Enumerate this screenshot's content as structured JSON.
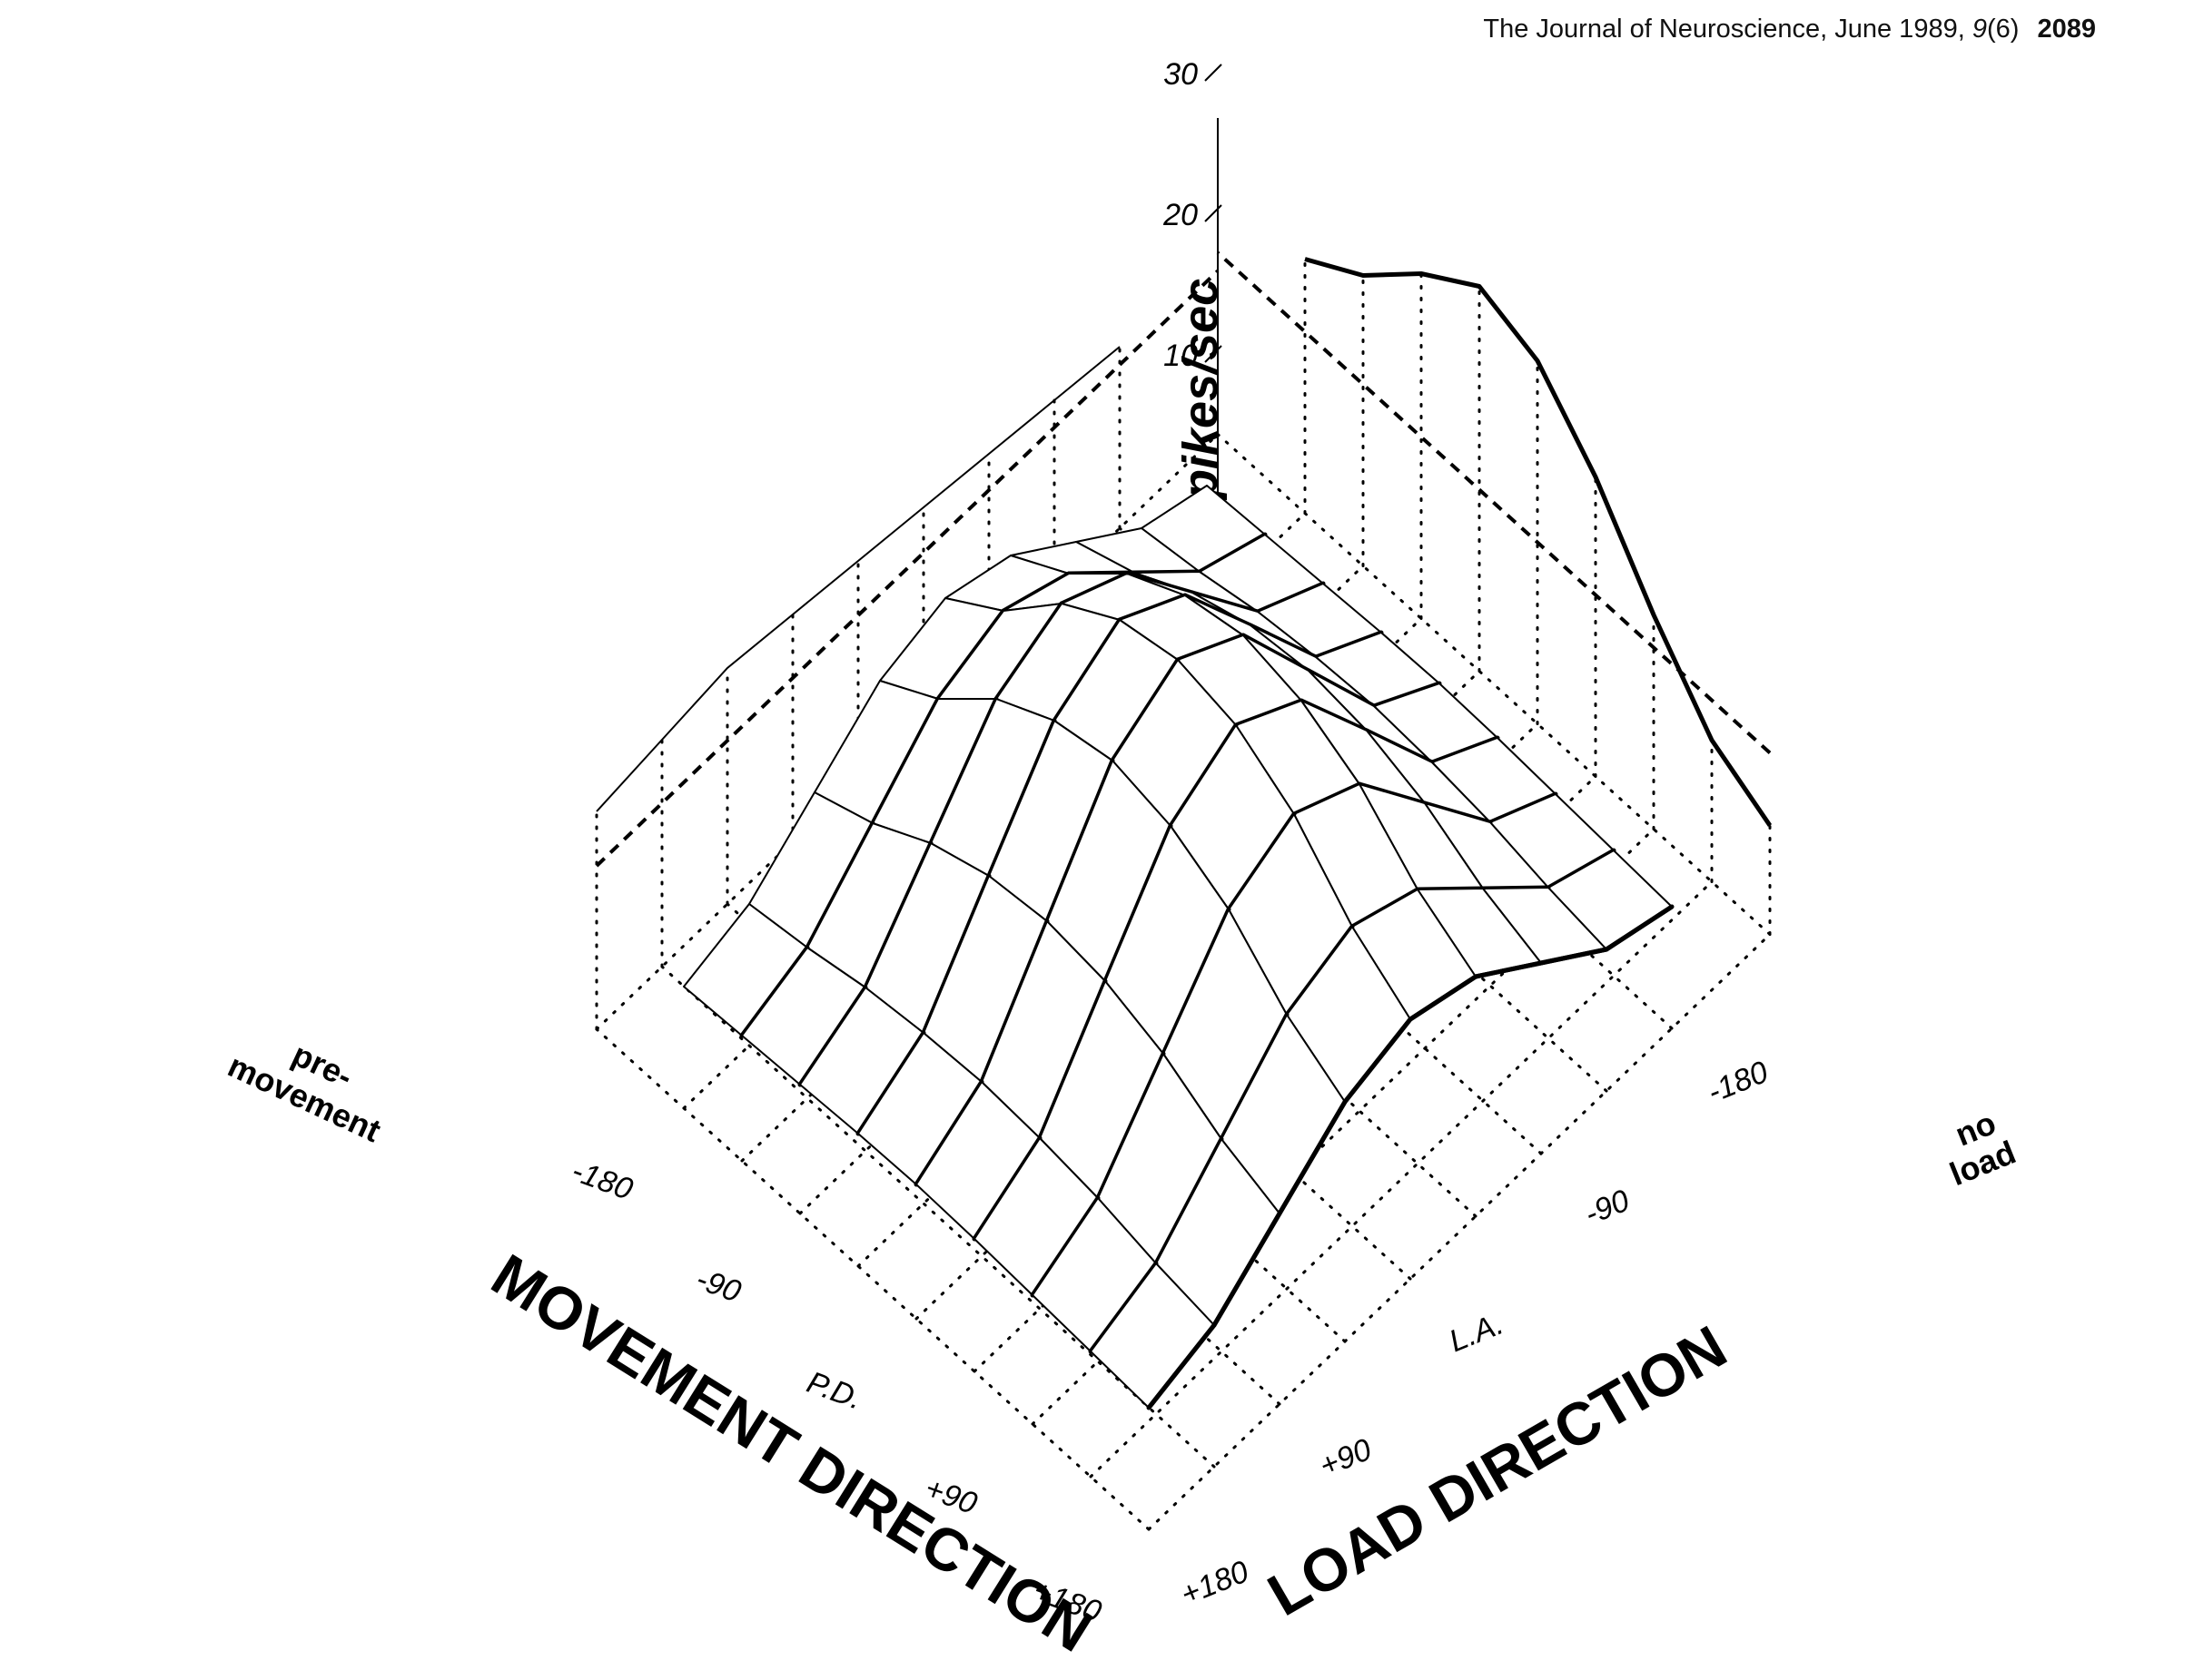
{
  "running_head": {
    "journal": "The Journal of Neuroscience, June 1989,",
    "volume": "9",
    "issue": "(6)",
    "page": "2089"
  },
  "chart_data": {
    "type": "surface3d",
    "zlabel": "spikes/sec",
    "z_ticks": [
      "10",
      "20",
      "30"
    ],
    "zlim": [
      0,
      35
    ],
    "movement_axis": {
      "title": "MOVEMENT DIRECTION",
      "ticks": [
        "+180",
        "+90",
        "P.D.",
        "-90",
        "-180"
      ],
      "category": "pre-\nmovement"
    },
    "load_axis": {
      "title": "LOAD DIRECTION",
      "ticks": [
        "+180",
        "+90",
        "L.A.",
        "-90",
        "-180"
      ],
      "category": "no\nload"
    },
    "movement_values": [
      180,
      135,
      90,
      45,
      0,
      -45,
      -90,
      -135,
      -180
    ],
    "load_values": [
      180,
      135,
      90,
      45,
      0,
      -45,
      -90,
      -135,
      -180
    ],
    "surface_rates": [
      [
        0.7,
        1.8,
        4.5,
        7.2,
        8.3,
        7.2,
        4.5,
        1.8,
        0.7
      ],
      [
        0.9,
        2.3,
        5.7,
        9.1,
        10.5,
        9.1,
        5.7,
        2.3,
        0.9
      ],
      [
        1.1,
        3.0,
        7.5,
        12.0,
        13.8,
        12.0,
        7.5,
        3.0,
        1.1
      ],
      [
        1.3,
        3.4,
        8.6,
        13.7,
        15.8,
        13.7,
        8.6,
        3.4,
        1.3
      ],
      [
        1.4,
        3.6,
        9.0,
        14.4,
        16.5,
        14.4,
        9.0,
        3.6,
        1.4
      ],
      [
        1.3,
        3.4,
        8.6,
        13.7,
        15.8,
        13.7,
        8.6,
        3.4,
        1.3
      ],
      [
        1.1,
        3.0,
        7.5,
        12.0,
        13.8,
        12.0,
        7.5,
        3.0,
        1.1
      ],
      [
        0.9,
        2.3,
        5.7,
        9.1,
        10.5,
        9.1,
        5.7,
        2.3,
        0.9
      ],
      [
        0.7,
        1.8,
        4.5,
        7.2,
        8.3,
        7.2,
        4.5,
        1.8,
        0.7
      ]
    ],
    "premovement_rates": [
      4.0,
      4.5,
      5.0,
      4.5,
      4.0,
      3.5,
      3.0,
      2.5,
      2.0
    ],
    "noload_rates": [
      2.0,
      3.8,
      7.8,
      12.5,
      16.0,
      17.2,
      15.0,
      12.0,
      10.0
    ],
    "premovement_level": 8,
    "grid": true,
    "legend": "none"
  }
}
